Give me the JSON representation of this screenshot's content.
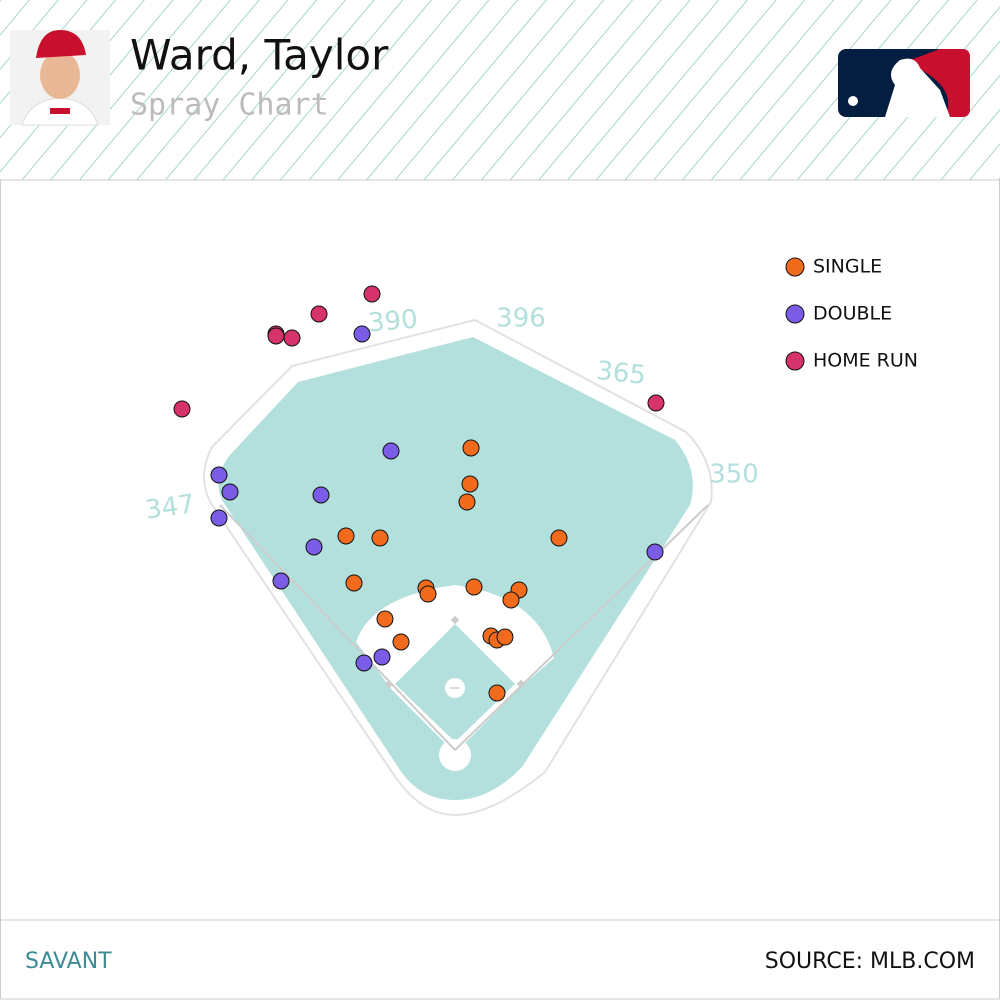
{
  "chart_data": {
    "type": "scatter",
    "title": "Ward, Taylor",
    "subtitle": "Spray Chart",
    "xlim": [
      -455,
      545
    ],
    "ylim": [
      -250,
      750
    ],
    "fence_distances": [
      347,
      390,
      396,
      365,
      350
    ],
    "series": [
      {
        "name": "SINGLE",
        "color": "#f26b1d",
        "x": [
          16,
          15,
          12,
          -109,
          -75,
          104,
          -101,
          -29,
          -27,
          19,
          64,
          56,
          -70,
          -54,
          36,
          42,
          50,
          42
        ],
        "y": [
          302,
          266,
          248,
          214,
          212,
          212,
          167,
          162,
          156,
          163,
          160,
          150,
          131,
          108,
          114,
          110,
          113,
          57
        ]
      },
      {
        "name": "DOUBLE",
        "color": "#7b5ce6",
        "x": [
          -64,
          -236,
          -225,
          -134,
          -236,
          -141,
          -174,
          200,
          -73,
          -91,
          -93
        ],
        "y": [
          299,
          275,
          258,
          255,
          232,
          203,
          169,
          198,
          93,
          87,
          416
        ]
      },
      {
        "name": "HOME RUN",
        "color": "#d6336c",
        "x": [
          -83,
          -136,
          -179,
          -179,
          -163,
          -273,
          201
        ],
        "y": [
          456,
          436,
          416,
          414,
          412,
          341,
          347
        ]
      }
    ]
  },
  "footer": {
    "left": "SAVANT",
    "right": "SOURCE: MLB.COM"
  }
}
